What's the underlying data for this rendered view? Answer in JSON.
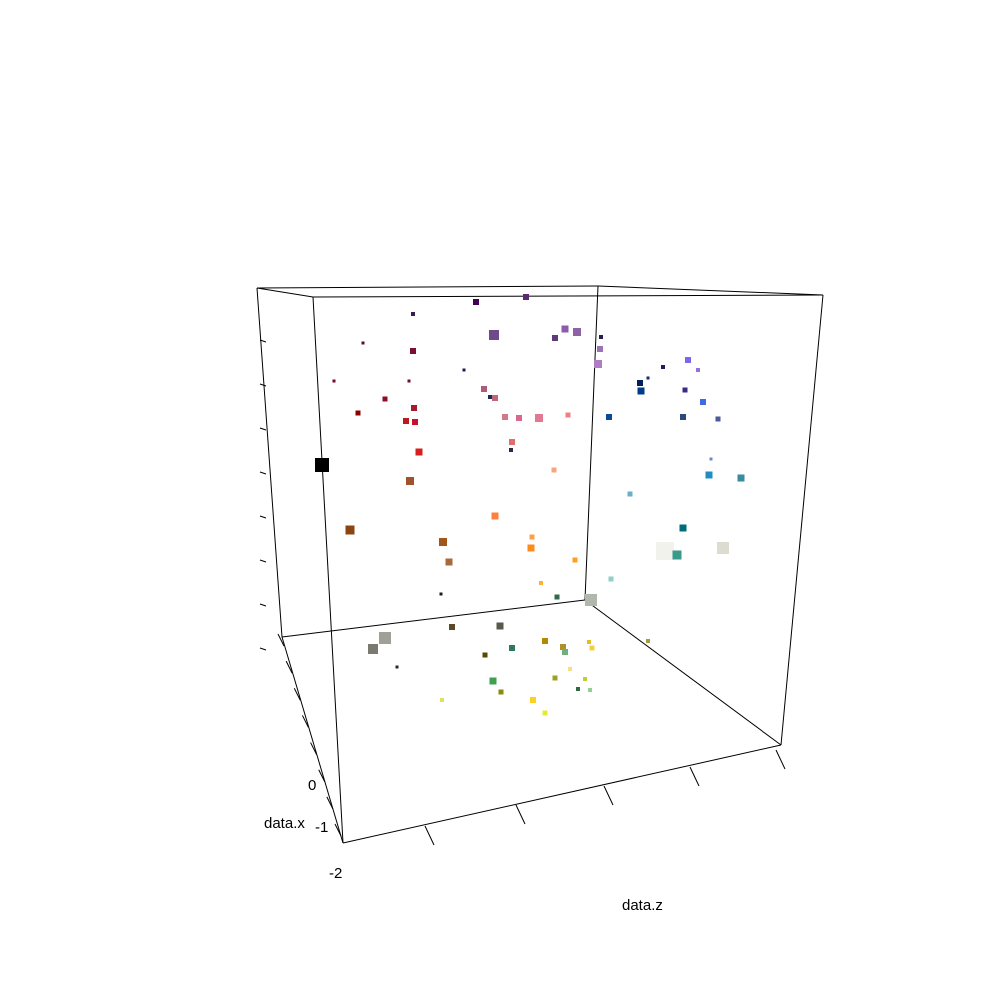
{
  "chart_data": {
    "type": "scatter",
    "subtype": "3d-scatter",
    "axes": {
      "x": {
        "label": "data.x",
        "tick_labels": [
          "0",
          "-1",
          "-2"
        ]
      },
      "z": {
        "label": "data.z"
      }
    },
    "grid": false,
    "legend": "none",
    "points": [
      {
        "color": "#000000",
        "size": 14
      },
      {
        "color": "#440154",
        "size": 6
      },
      {
        "color": "#5a2a6e",
        "size": 6
      },
      {
        "color": "#3b1c50",
        "size": 4
      },
      {
        "color": "#6d4a8a",
        "size": 10
      },
      {
        "color": "#8a5da8",
        "size": 7
      },
      {
        "color": "#8e63a6",
        "size": 8
      },
      {
        "color": "#5c3b7a",
        "size": 6
      },
      {
        "color": "#2a1c4d",
        "size": 4
      },
      {
        "color": "#9a73b5",
        "size": 6
      },
      {
        "color": "#b07cc6",
        "size": 8
      },
      {
        "color": "#7a0f3a",
        "size": 6
      },
      {
        "color": "#5c0a2e",
        "size": 3
      },
      {
        "color": "#7a0a22",
        "size": 3
      },
      {
        "color": "#6b0f2b",
        "size": 3
      },
      {
        "color": "#900c26",
        "size": 5
      },
      {
        "color": "#a51d2d",
        "size": 6
      },
      {
        "color": "#b81c22",
        "size": 6
      },
      {
        "color": "#c8102e",
        "size": 6
      },
      {
        "color": "#d62020",
        "size": 7
      },
      {
        "color": "#8b0000",
        "size": 5
      },
      {
        "color": "#1c1a50",
        "size": 3
      },
      {
        "color": "#b05a7a",
        "size": 6
      },
      {
        "color": "#c0667a",
        "size": 6
      },
      {
        "color": "#d07a8a",
        "size": 6
      },
      {
        "color": "#d76a8a",
        "size": 6
      },
      {
        "color": "#e07a92",
        "size": 8
      },
      {
        "color": "#f08080",
        "size": 5
      },
      {
        "color": "#e06c6c",
        "size": 6
      },
      {
        "color": "#1a2a50",
        "size": 4
      },
      {
        "color": "#2a2a40",
        "size": 4
      },
      {
        "color": "#f4a582",
        "size": 5
      },
      {
        "color": "#a0522d",
        "size": 8
      },
      {
        "color": "#8b4513",
        "size": 9
      },
      {
        "color": "#ff7f3f",
        "size": 7
      },
      {
        "color": "#a0561a",
        "size": 8
      },
      {
        "color": "#ffa040",
        "size": 5
      },
      {
        "color": "#ff8c1a",
        "size": 7
      },
      {
        "color": "#a86a3a",
        "size": 7
      },
      {
        "color": "#1a1a2a",
        "size": 3
      },
      {
        "color": "#ff9f1a",
        "size": 5
      },
      {
        "color": "#ffb030",
        "size": 4
      },
      {
        "color": "#2e6b4a",
        "size": 5
      },
      {
        "color": "#2b1a5a",
        "size": 4
      },
      {
        "color": "#1a2a6e",
        "size": 3
      },
      {
        "color": "#001f5c",
        "size": 6
      },
      {
        "color": "#003a8c",
        "size": 7
      },
      {
        "color": "#0a4a9a",
        "size": 6
      },
      {
        "color": "#3a2a8a",
        "size": 5
      },
      {
        "color": "#7b68ee",
        "size": 6
      },
      {
        "color": "#9370db",
        "size": 4
      },
      {
        "color": "#2a4a7a",
        "size": 6
      },
      {
        "color": "#4a5a9a",
        "size": 5
      },
      {
        "color": "#4169e1",
        "size": 6
      },
      {
        "color": "#6a8acd",
        "size": 3
      },
      {
        "color": "#1f8fbf",
        "size": 7
      },
      {
        "color": "#3a8aa0",
        "size": 7
      },
      {
        "color": "#6ab0c0",
        "size": 5
      },
      {
        "color": "#006b7a",
        "size": 7
      },
      {
        "color": "#f2f2ec",
        "size": 18
      },
      {
        "color": "#3a9a8a",
        "size": 9
      },
      {
        "color": "#dcdcd0",
        "size": 12
      },
      {
        "color": "#90d0c8",
        "size": 5
      },
      {
        "color": "#b0b8ae",
        "size": 12
      },
      {
        "color": "#a0a098",
        "size": 12
      },
      {
        "color": "#5a4a2a",
        "size": 6
      },
      {
        "color": "#5a5a4a",
        "size": 7
      },
      {
        "color": "#b08a00",
        "size": 6
      },
      {
        "color": "#7a7a70",
        "size": 10
      },
      {
        "color": "#2a2a1a",
        "size": 3
      },
      {
        "color": "#5a4a00",
        "size": 5
      },
      {
        "color": "#2e7a5a",
        "size": 6
      },
      {
        "color": "#b0902a",
        "size": 6
      },
      {
        "color": "#e0c020",
        "size": 4
      },
      {
        "color": "#f0d040",
        "size": 5
      },
      {
        "color": "#f4e080",
        "size": 4
      },
      {
        "color": "#70b080",
        "size": 6
      },
      {
        "color": "#40a050",
        "size": 7
      },
      {
        "color": "#8a8a10",
        "size": 5
      },
      {
        "color": "#a0a020",
        "size": 5
      },
      {
        "color": "#ffd020",
        "size": 6
      },
      {
        "color": "#c0d030",
        "size": 4
      },
      {
        "color": "#e0e060",
        "size": 4
      },
      {
        "color": "#2e6b40",
        "size": 4
      },
      {
        "color": "#e8e830",
        "size": 5
      },
      {
        "color": "#a0a040",
        "size": 4
      },
      {
        "color": "#90d090",
        "size": 4
      }
    ]
  }
}
